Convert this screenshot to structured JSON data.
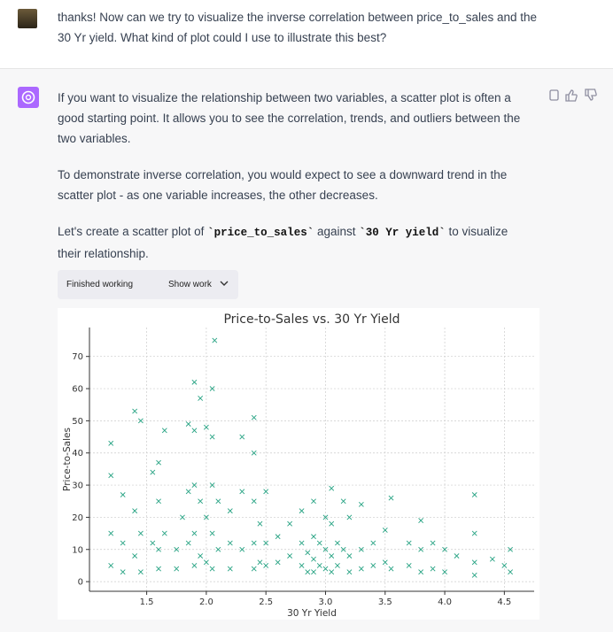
{
  "user_message": {
    "text": "thanks! Now can we try to visualize the inverse correlation between price_to_sales and the 30 Yr yield. What kind of plot could I use to illustrate this best?"
  },
  "assistant_message": {
    "paragraphs": [
      [
        "If you want to visualize the relationship between two variables, a scatter plot is often a good starting point. It allows you to see the correlation, trends, and outliers between the two variables."
      ],
      [
        "To demonstrate inverse correlation, you would expect to see a downward trend in the scatter plot - as one variable increases, the other decreases."
      ],
      [
        "Let's create a scatter plot of ",
        "`price_to_sales`",
        " against ",
        "`30 Yr yield`",
        " to visualize their relationship."
      ]
    ],
    "status": "Finished working",
    "toggle": "Show work"
  },
  "chart_data": {
    "type": "scatter",
    "title": "Price-to-Sales vs. 30 Yr Yield",
    "x_label": "30 Yr Yield",
    "y_label": "Price-to-Sales",
    "color": "#25a282",
    "grid": true,
    "xlim": [
      1.02,
      4.75
    ],
    "ylim": [
      -3,
      79
    ],
    "xticks": [
      1.5,
      {
        "value": 2.0,
        "label": "2.0"
      },
      2.5,
      {
        "value": 3.0,
        "label": "3.0"
      },
      3.5,
      {
        "value": 4.0,
        "label": "4.0"
      },
      4.5
    ],
    "yticks": [
      0,
      10,
      20,
      30,
      40,
      50,
      60,
      70
    ],
    "x": [
      1.2,
      1.2,
      1.2,
      1.2,
      1.3,
      1.3,
      1.3,
      1.4,
      1.4,
      1.4,
      1.45,
      1.45,
      1.45,
      1.55,
      1.55,
      1.6,
      1.6,
      1.6,
      1.6,
      1.65,
      1.65,
      1.75,
      1.75,
      1.8,
      1.85,
      1.85,
      1.85,
      1.9,
      1.9,
      1.9,
      1.9,
      1.9,
      1.95,
      1.95,
      1.95,
      2.0,
      2.0,
      2.0,
      2.05,
      2.05,
      2.05,
      2.05,
      2.05,
      2.07,
      2.1,
      2.1,
      2.2,
      2.2,
      2.2,
      2.3,
      2.3,
      2.3,
      2.4,
      2.4,
      2.4,
      2.4,
      2.4,
      2.45,
      2.45,
      2.5,
      2.5,
      2.5,
      2.6,
      2.6,
      2.7,
      2.7,
      2.8,
      2.8,
      2.8,
      2.85,
      2.85,
      2.9,
      2.9,
      2.9,
      2.9,
      2.95,
      2.95,
      3.0,
      3.0,
      3.0,
      3.05,
      3.05,
      3.05,
      3.05,
      3.1,
      3.1,
      3.15,
      3.15,
      3.2,
      3.2,
      3.2,
      3.3,
      3.3,
      3.3,
      3.4,
      3.4,
      3.5,
      3.5,
      3.55,
      3.55,
      3.7,
      3.7,
      3.8,
      3.8,
      3.8,
      3.9,
      3.9,
      4.0,
      4.0,
      4.1,
      4.25,
      4.25,
      4.25,
      4.25,
      4.4,
      4.5,
      4.55,
      4.55
    ],
    "y": [
      43,
      33,
      15,
      5,
      27,
      12,
      3,
      53,
      22,
      8,
      50,
      15,
      3,
      34,
      12,
      37,
      25,
      10,
      4,
      47,
      15,
      10,
      4,
      20,
      49,
      28,
      12,
      62,
      47,
      30,
      15,
      5,
      57,
      25,
      8,
      48,
      20,
      6,
      60,
      45,
      30,
      15,
      4,
      75,
      25,
      10,
      22,
      12,
      4,
      45,
      28,
      10,
      51,
      40,
      25,
      12,
      4,
      18,
      6,
      28,
      12,
      5,
      14,
      6,
      18,
      8,
      22,
      12,
      5,
      9,
      3,
      25,
      14,
      7,
      3,
      12,
      5,
      20,
      10,
      4,
      29,
      18,
      8,
      3,
      12,
      5,
      25,
      10,
      20,
      8,
      3,
      24,
      10,
      4,
      12,
      5,
      16,
      6,
      26,
      4,
      12,
      5,
      19,
      10,
      3,
      12,
      4,
      10,
      3,
      8,
      27,
      15,
      6,
      2,
      7,
      5,
      10,
      3
    ]
  }
}
